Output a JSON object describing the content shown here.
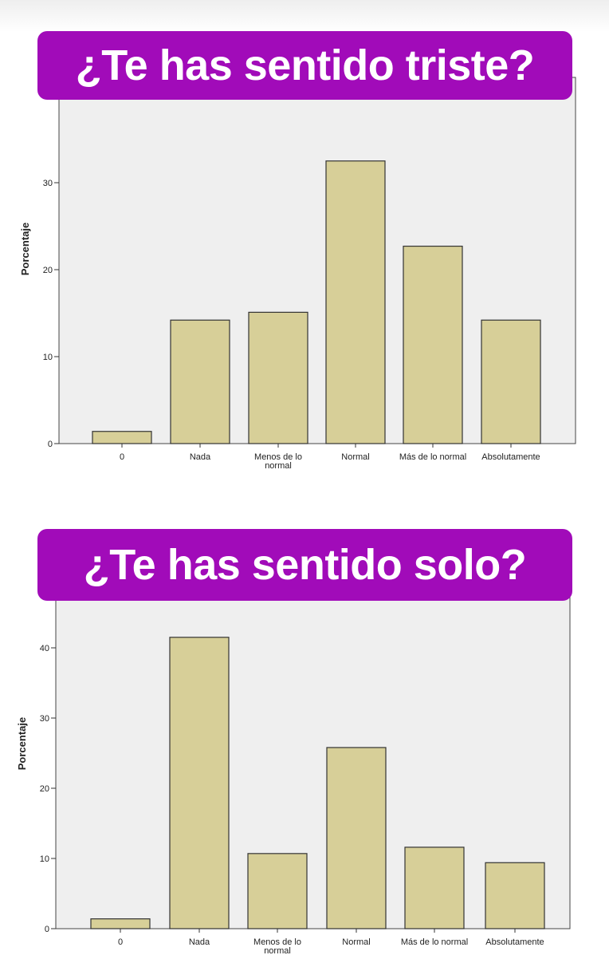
{
  "colors": {
    "banner": "#a10bb9",
    "bar": "#d7cf98",
    "bar_stroke": "#333333",
    "plot_bg": "#efefef"
  },
  "chart_data": [
    {
      "type": "bar",
      "title": "¿Te has sentido triste?",
      "ylabel": "Porcentaje",
      "xlabel": "",
      "categories": [
        "0",
        "Nada",
        "Menos de lo normal",
        "Normal",
        "Más de lo normal",
        "Absolutamente"
      ],
      "values": [
        1.4,
        14.2,
        15.1,
        32.5,
        22.7,
        14.2
      ],
      "ylim": [
        0,
        40
      ],
      "yticks": [
        "0",
        "10",
        "20",
        "30",
        "40"
      ]
    },
    {
      "type": "bar",
      "title": "¿Te has sentido solo?",
      "ylabel": "Porcentaje",
      "xlabel": "",
      "categories": [
        "0",
        "Nada",
        "Menos de lo normal",
        "Normal",
        "Más de lo normal",
        "Absolutamente"
      ],
      "values": [
        1.4,
        41.5,
        10.7,
        25.8,
        11.6,
        9.4
      ],
      "ylim": [
        0,
        50
      ],
      "yticks": [
        "0",
        "10",
        "20",
        "30",
        "40"
      ]
    }
  ]
}
